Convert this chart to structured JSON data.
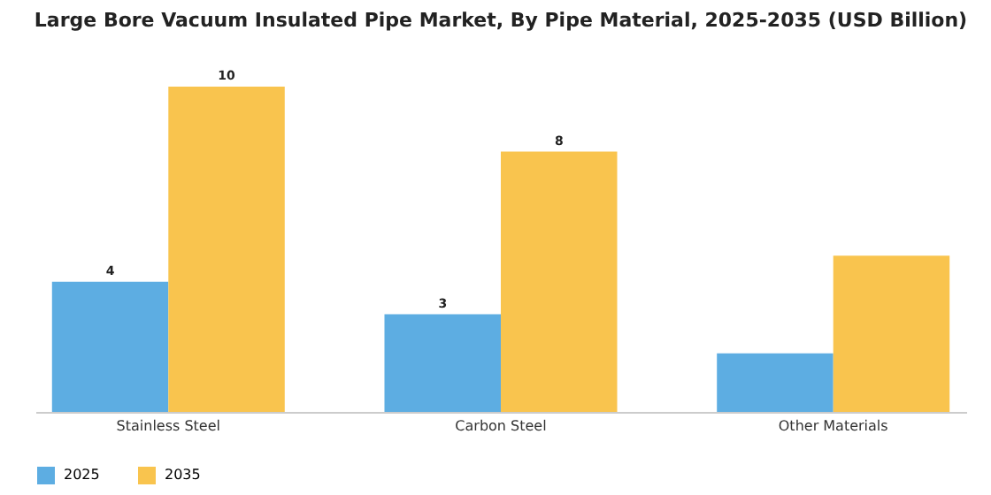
{
  "chart_data": {
    "type": "bar",
    "title": "Large Bore Vacuum Insulated Pipe Market, By Pipe Material, 2025-2035 (USD Billion)",
    "categories": [
      "Stainless Steel",
      "Carbon Steel",
      "Other Materials"
    ],
    "series": [
      {
        "name": "2025",
        "color": "#5dade2",
        "values": [
          4,
          3,
          1.8
        ],
        "value_labels": [
          "4",
          "3",
          null
        ]
      },
      {
        "name": "2035",
        "color": "#f9c44e",
        "values": [
          10,
          8,
          4.8
        ],
        "value_labels": [
          "10",
          "8",
          null
        ]
      }
    ],
    "legend": "bottom"
  }
}
